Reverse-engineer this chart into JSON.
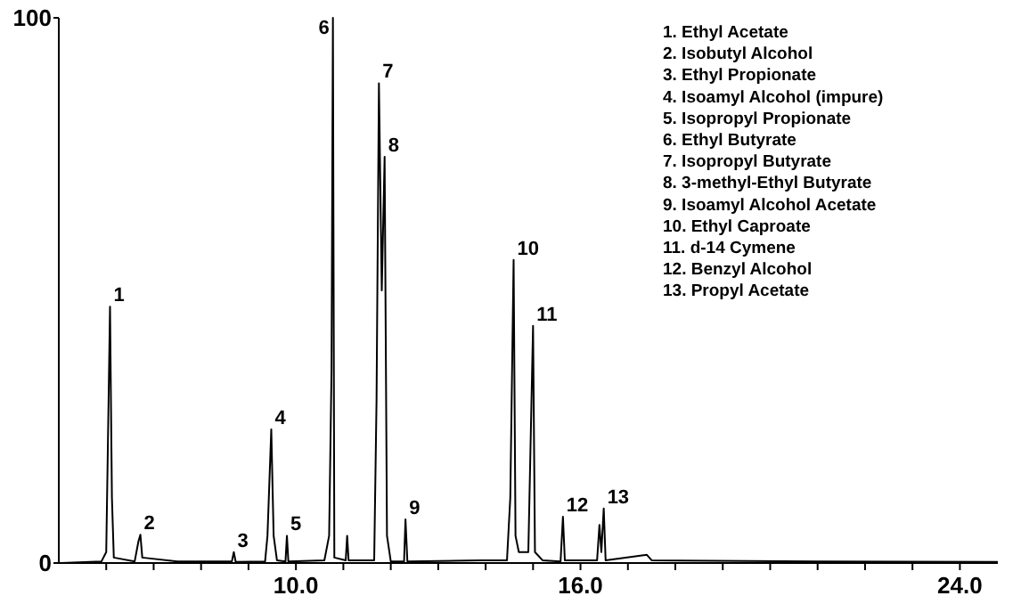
{
  "chart_data": {
    "type": "line",
    "x": [
      5.05,
      5.9,
      6.0,
      6.05,
      6.08,
      6.12,
      6.16,
      6.6,
      6.68,
      6.72,
      6.76,
      7.5,
      8.65,
      8.69,
      8.73,
      9.35,
      9.4,
      9.48,
      9.53,
      9.6,
      9.78,
      9.81,
      9.84,
      10.6,
      10.7,
      10.75,
      10.78,
      10.81,
      11.05,
      11.08,
      11.11,
      11.65,
      11.7,
      11.75,
      11.81,
      11.87,
      11.92,
      12.0,
      12.28,
      12.31,
      12.35,
      13.9,
      14.45,
      14.52,
      14.59,
      14.63,
      14.7,
      14.9,
      15.0,
      15.04,
      15.2,
      15.58,
      15.63,
      15.67,
      16.35,
      16.4,
      16.44,
      16.49,
      16.53,
      17.4,
      17.5,
      21.0,
      24.8
    ],
    "series": [
      {
        "color": "#000000",
        "values": [
          0,
          0.3,
          2,
          30,
          47,
          12,
          1,
          0.3,
          4,
          5.2,
          1,
          0.3,
          0.3,
          2,
          0.2,
          0.3,
          5,
          24.5,
          5,
          0.5,
          0.3,
          5,
          0.3,
          0.5,
          5,
          35,
          100,
          1,
          0.5,
          5,
          0.5,
          0.5,
          30,
          88,
          50,
          74.5,
          5,
          0.3,
          0.3,
          8,
          0.3,
          0.5,
          0.5,
          12,
          55.6,
          5,
          2,
          2,
          43.5,
          2,
          0.5,
          0.3,
          8.5,
          0.5,
          0.5,
          7,
          2,
          10,
          0.5,
          1.5,
          0.5,
          0.3,
          0.2
        ]
      }
    ],
    "xlim": [
      5,
      24.8
    ],
    "ylim": [
      0,
      100
    ],
    "xticks": [
      {
        "value": 6,
        "label": null
      },
      {
        "value": 7,
        "label": null
      },
      {
        "value": 8,
        "label": null
      },
      {
        "value": 9,
        "label": null
      },
      {
        "value": 10,
        "label": "10.0"
      },
      {
        "value": 11,
        "label": null
      },
      {
        "value": 12,
        "label": null
      },
      {
        "value": 13,
        "label": null
      },
      {
        "value": 14,
        "label": null
      },
      {
        "value": 15,
        "label": null
      },
      {
        "value": 16,
        "label": "16.0"
      },
      {
        "value": 17,
        "label": null
      },
      {
        "value": 18,
        "label": null
      },
      {
        "value": 19,
        "label": null
      },
      {
        "value": 20,
        "label": null
      },
      {
        "value": 21,
        "label": null
      },
      {
        "value": 22,
        "label": null
      },
      {
        "value": 23,
        "label": null
      },
      {
        "value": 24,
        "label": "24.0"
      }
    ],
    "yticks": [
      0,
      100
    ],
    "grid": false,
    "marker": "none",
    "line_style": "solid",
    "annotations": [
      {
        "text": "1",
        "x": 6.08,
        "y": 47
      },
      {
        "text": "2",
        "x": 6.72,
        "y": 5.2
      },
      {
        "text": "3",
        "x": 8.69,
        "y": 2
      },
      {
        "text": "4",
        "x": 9.48,
        "y": 24.5
      },
      {
        "text": "5",
        "x": 9.81,
        "y": 5
      },
      {
        "text": "6",
        "x": 10.78,
        "y": 100
      },
      {
        "text": "7",
        "x": 11.75,
        "y": 88
      },
      {
        "text": "8",
        "x": 11.87,
        "y": 74.5
      },
      {
        "text": "9",
        "x": 12.31,
        "y": 8
      },
      {
        "text": "10",
        "x": 14.59,
        "y": 55.6
      },
      {
        "text": "11",
        "x": 15.0,
        "y": 43.5
      },
      {
        "text": "12",
        "x": 15.63,
        "y": 8.5
      },
      {
        "text": "13",
        "x": 16.49,
        "y": 10
      },
      "1. Ethyl Acetate",
      "2. Isobutyl Alcohol",
      "3. Ethyl Propionate",
      "4. Isoamyl Alcohol (impure)",
      "5. Isopropyl Propionate",
      "6. Ethyl Butyrate",
      "7. Isopropyl Butyrate",
      "8. 3-methyl-Ethyl Butyrate",
      "9. Isoamyl Alcohol Acetate",
      "10. Ethyl Caproate",
      "11. d-14 Cymene",
      "12. Benzyl Alcohol",
      "13. Propyl Acetate"
    ]
  }
}
